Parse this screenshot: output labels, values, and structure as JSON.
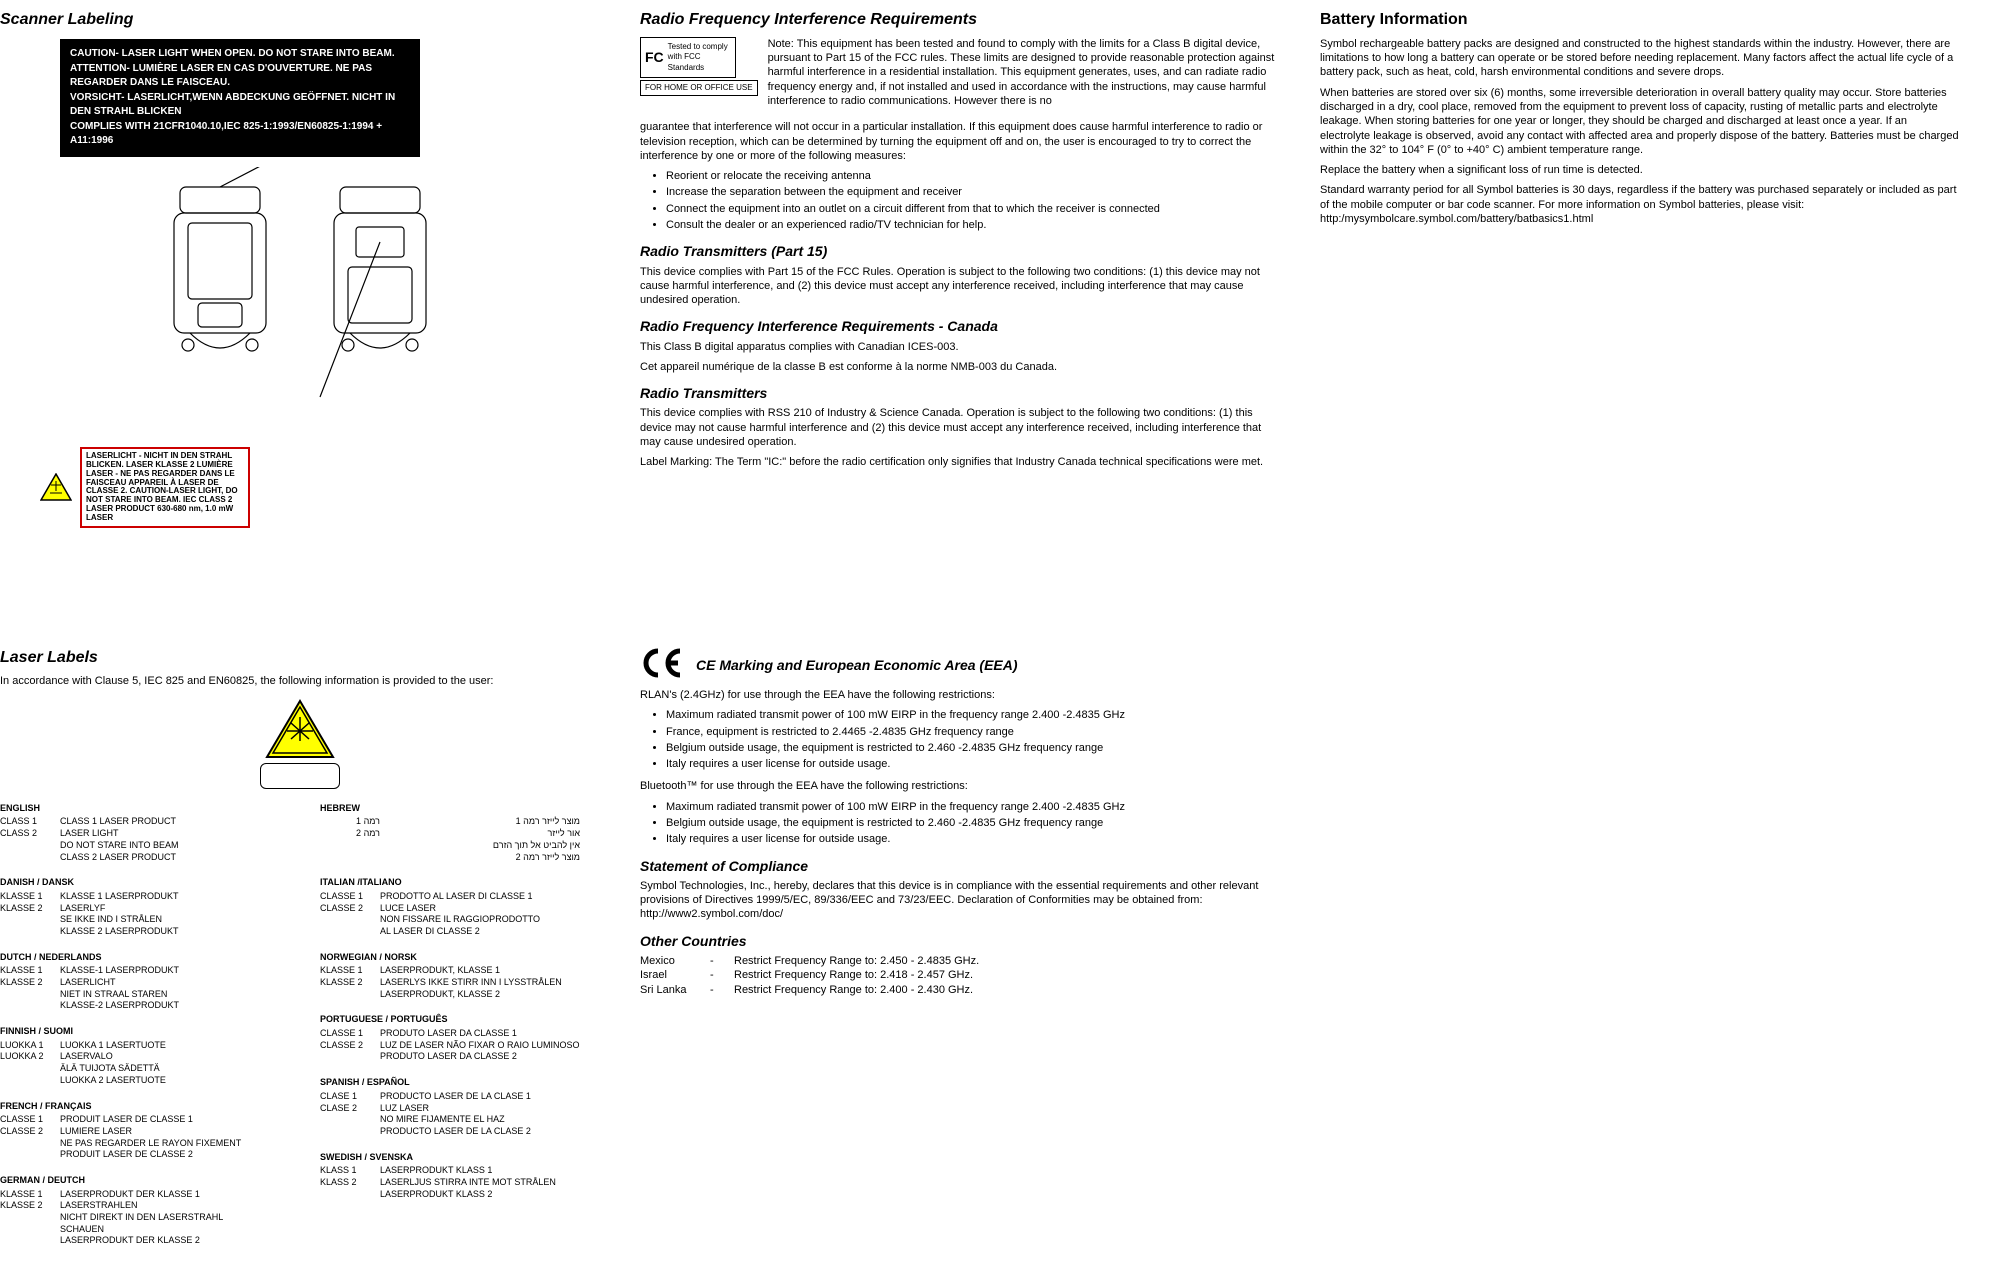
{
  "col1": {
    "title": "Scanner Labeling",
    "warning": {
      "l1": "CAUTION- LASER LIGHT WHEN OPEN. DO NOT STARE INTO BEAM.",
      "l2": "ATTENTION- LUMIÈRE LASER EN CAS D'OUVERTURE. NE PAS REGARDER DANS LE FAISCEAU.",
      "l3": "VORSICHT- LASERLICHT,WENN ABDECKUNG GEÖFFNET. NICHT IN DEN STRAHL BLICKEN",
      "l4": "COMPLIES WITH 21CFR1040.10,IEC 825-1:1993/EN60825-1:1994 + A11:1996"
    },
    "laser_box": "LASERLICHT - NICHT IN DEN STRAHL BLICKEN. LASER KLASSE 2 LUMIÈRE LASER - NE PAS REGARDER DANS LE FAISCEAU APPAREIL À LASER DE CLASSE 2. CAUTION-LASER LIGHT, DO NOT STARE INTO BEAM. IEC CLASS 2 LASER PRODUCT 630-680 nm, 1.0 mW LASER"
  },
  "col2": {
    "h_rfi": "Radio Frequency Interference Requirements",
    "fcc_line1": "Tested to comply",
    "fcc_line2": "with FCC Standards",
    "fcc_caption": "FOR HOME OR OFFICE USE",
    "rfi_note": "Note: This equipment has been tested and found to comply with the limits for a Class B digital device, pursuant to Part 15 of the FCC rules. These limits are designed to provide reasonable protection against harmful interference in a residential installation. This equipment generates, uses, and can radiate radio frequency energy and, if not installed and used in accordance with the instructions, may cause harmful interference to radio communications. However there is no",
    "rfi_cont": "guarantee that interference will not occur in a particular installation. If this equipment does cause harmful interference to radio or television reception, which can be determined by turning the equipment off and on, the user is encouraged to try to correct the interference by one or more of the following measures:",
    "rfi_bullets": [
      "Reorient or relocate the receiving antenna",
      "Increase the separation between the equipment and receiver",
      "Connect the equipment into an outlet on a circuit different from that to which the receiver is connected",
      "Consult the dealer or an experienced radio/TV technician for help."
    ],
    "h_rt15": "Radio Transmitters (Part 15)",
    "rt15_p": "This device complies with Part 15 of the FCC Rules. Operation is subject to the following two conditions: (1) this device may not cause harmful interference, and (2) this device must accept any interference received, including interference that may cause undesired operation.",
    "h_rfi_ca": "Radio Frequency Interference Requirements - Canada",
    "rfi_ca_p1": "This Class B digital apparatus complies with Canadian ICES-003.",
    "rfi_ca_p2": "Cet appareil numérique de la classe B est conforme à la norme NMB-003 du Canada.",
    "h_rt": "Radio Transmitters",
    "rt_p": "This device complies with RSS 210 of Industry & Science Canada. Operation is subject to the following two conditions: (1) this device may not cause harmful interference and (2) this device must accept any interference received, including interference that may cause undesired operation.",
    "rt_label": "Label Marking: The Term \"IC:\" before the radio certification only signifies that Industry Canada technical specifications were met."
  },
  "col3": {
    "h": "Battery Information",
    "p1": "Symbol rechargeable battery packs are designed and constructed to the highest standards within the industry. However, there are limitations to how long a battery can operate or be stored before needing replacement. Many factors affect the actual life cycle of a battery pack, such as heat, cold, harsh environmental conditions and severe drops.",
    "p2": "When batteries are stored over six (6) months, some irreversible deterioration in overall battery quality may occur. Store batteries discharged in a dry, cool place, removed from the equipment to prevent loss of capacity, rusting of metallic parts and electrolyte leakage. When storing batteries for one year or longer, they should be charged and discharged at least once a year. If an electrolyte leakage is observed, avoid any contact with affected area and properly dispose of the battery. Batteries must be charged within the 32° to 104° F (0° to +40° C) ambient temperature range.",
    "p3": "Replace the battery when a significant loss of run time is detected.",
    "p4": "Standard warranty period for all Symbol batteries is 30 days, regardless if the battery was purchased separately or included as part of the mobile computer or bar code scanner. For more information on Symbol batteries, please visit: http:/mysymbolcare.symbol.com/battery/batbasics1.html"
  },
  "laser": {
    "h": "Laser Labels",
    "sub": "In accordance with Clause 5, IEC 825 and EN60825, the following information is provided to the user:",
    "left": [
      {
        "t": "ENGLISH",
        "rows": [
          [
            "CLASS 1",
            "CLASS 1 LASER PRODUCT"
          ],
          [
            "CLASS 2",
            "LASER LIGHT"
          ],
          [
            "",
            "DO NOT STARE INTO BEAM"
          ],
          [
            "",
            "CLASS 2 LASER PRODUCT"
          ]
        ]
      },
      {
        "t": "DANISH / DANSK",
        "rows": [
          [
            "KLASSE 1",
            "KLASSE 1 LASERPRODUKT"
          ],
          [
            "KLASSE 2",
            "LASERLYF"
          ],
          [
            "",
            "SE IKKE IND I STRÅLEN"
          ],
          [
            "",
            "KLASSE 2 LASERPRODUKT"
          ]
        ]
      },
      {
        "t": "DUTCH / NEDERLANDS",
        "rows": [
          [
            "KLASSE 1",
            "KLASSE-1 LASERPRODUKT"
          ],
          [
            "KLASSE 2",
            "LASERLICHT"
          ],
          [
            "",
            "NIET IN STRAAL STAREN"
          ],
          [
            "",
            "KLASSE-2 LASERPRODUKT"
          ]
        ]
      },
      {
        "t": "FINNISH / SUOMI",
        "rows": [
          [
            "LUOKKA 1",
            "LUOKKA 1 LASERTUOTE"
          ],
          [
            "LUOKKA 2",
            "LASERVALO"
          ],
          [
            "",
            "ÄLÄ TUIJOTA SÄDETTÄ"
          ],
          [
            "",
            "LUOKKA 2 LASERTUOTE"
          ]
        ]
      },
      {
        "t": "FRENCH / FRANÇAIS",
        "rows": [
          [
            "CLASSE 1",
            "PRODUIT LASER DE CLASSE 1"
          ],
          [
            "CLASSE 2",
            "LUMIERE LASER"
          ],
          [
            "",
            "NE PAS REGARDER LE RAYON FIXEMENT"
          ],
          [
            "",
            "PRODUIT LASER DE CLASSE 2"
          ]
        ]
      },
      {
        "t": "GERMAN / DEUTCH",
        "rows": [
          [
            "KLASSE 1",
            "LASERPRODUKT DER KLASSE 1"
          ],
          [
            "KLASSE 2",
            "LASERSTRAHLEN"
          ],
          [
            "",
            "NICHT DIREKT IN DEN LASERSTRAHL SCHAUEN"
          ],
          [
            "",
            "LASERPRODUKT DER KLASSE 2"
          ]
        ]
      }
    ],
    "right": [
      {
        "t": "HEBREW",
        "hebrew": true,
        "rows": [
          [
            "רמה 1",
            "מוצר לייזר רמה 1"
          ],
          [
            "",
            ""
          ],
          [
            "רמה 2",
            "אור לייזר"
          ],
          [
            "",
            "אין להביט אל תוך הזרם"
          ],
          [
            "",
            "מוצר לייזר רמה 2"
          ]
        ]
      },
      {
        "t": "ITALIAN /ITALIANO",
        "rows": [
          [
            "CLASSE 1",
            "PRODOTTO AL LASER DI CLASSE 1"
          ],
          [
            "CLASSE 2",
            "LUCE LASER"
          ],
          [
            "",
            "NON FISSARE IL RAGGIOPRODOTTO"
          ],
          [
            "",
            "AL LASER DI CLASSE 2"
          ]
        ]
      },
      {
        "t": "NORWEGIAN / NORSK",
        "rows": [
          [
            "KLASSE 1",
            "LASERPRODUKT, KLASSE 1"
          ],
          [
            "KLASSE 2",
            "LASERLYS IKKE STIRR INN I LYSSTRÅLEN"
          ],
          [
            "",
            "LASERPRODUKT, KLASSE 2"
          ]
        ]
      },
      {
        "t": "PORTUGUESE / PORTUGUÊS",
        "rows": [
          [
            "CLASSE 1",
            "PRODUTO LASER DA CLASSE 1"
          ],
          [
            "CLASSE 2",
            "LUZ DE LASER NÃO FIXAR O RAIO LUMINOSO"
          ],
          [
            "",
            "PRODUTO LASER DA CLASSE 2"
          ]
        ]
      },
      {
        "t": "SPANISH / ESPAÑOL",
        "rows": [
          [
            "CLASE 1",
            "PRODUCTO LASER DE LA CLASE 1"
          ],
          [
            "CLASE 2",
            "LUZ LASER"
          ],
          [
            "",
            "NO MIRE FIJAMENTE EL HAZ"
          ],
          [
            "",
            "PRODUCTO LASER DE LA CLASE 2"
          ]
        ]
      },
      {
        "t": "SWEDISH / SVENSKA",
        "rows": [
          [
            "KLASS 1",
            "LASERPRODUKT KLASS 1"
          ],
          [
            "KLASS 2",
            "LASERLJUS STIRRA INTE MOT STRÅLEN"
          ],
          [
            "",
            "LASERPRODUKT KLASS 2"
          ]
        ]
      }
    ]
  },
  "ce": {
    "h": "CE Marking and European Economic Area (EEA)",
    "rlan_intro": "RLAN's (2.4GHz) for use through the EEA have the following restrictions:",
    "rlan_bullets": [
      "Maximum radiated transmit power of 100 mW EIRP in the frequency range 2.400 -2.4835 GHz",
      "France, equipment is restricted to 2.4465 -2.4835 GHz frequency range",
      "Belgium outside usage, the equipment is restricted to 2.460 -2.4835 GHz frequency range",
      "Italy requires a user license for outside usage."
    ],
    "bt_intro": "Bluetooth™ for use through the EEA have the following restrictions:",
    "bt_bullets": [
      "Maximum radiated transmit power of 100 mW EIRP in the frequency range 2.400 -2.4835 GHz",
      "Belgium outside usage, the equipment is restricted to 2.460 -2.4835 GHz frequency range",
      "Italy requires a user license for outside usage."
    ],
    "h_soc": "Statement of Compliance",
    "soc_p": "Symbol Technologies, Inc., hereby, declares that this device is in compliance with the essential requirements and other relevant provisions of Directives 1999/5/EC, 89/336/EEC and 73/23/EEC. Declaration of Conformities may be obtained from: http://www2.symbol.com/doc/",
    "h_oc": "Other Countries",
    "countries": [
      [
        "Mexico",
        "-",
        "Restrict Frequency Range to: 2.450 - 2.4835 GHz."
      ],
      [
        "Israel",
        "-",
        "Restrict Frequency Range to: 2.418 - 2.457 GHz."
      ],
      [
        "Sri Lanka",
        "-",
        "Restrict Frequency Range to: 2.400 - 2.430 GHz."
      ]
    ]
  }
}
